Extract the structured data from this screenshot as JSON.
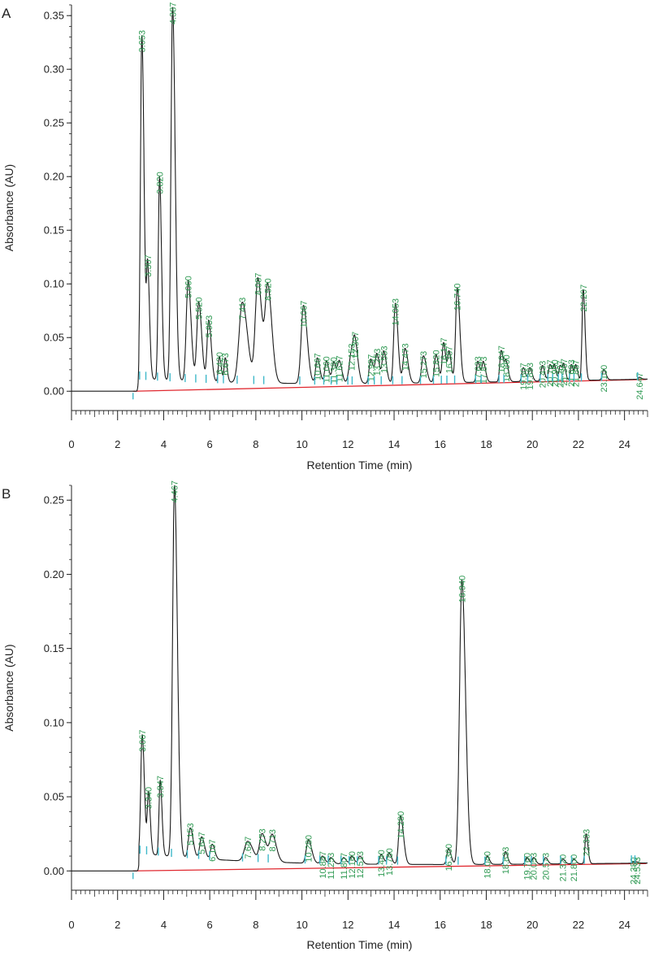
{
  "chart_data": [
    {
      "type": "line",
      "panel": "A",
      "xlabel": "Retention Time (min)",
      "ylabel": "Absorbance (AU)",
      "xlim": [
        0,
        25
      ],
      "ylim": [
        -0.018,
        0.36
      ],
      "xticks": [
        "0",
        "2",
        "4",
        "6",
        "8",
        "10",
        "12",
        "14",
        "16",
        "18",
        "20",
        "22",
        "24"
      ],
      "yticks": [
        "0.00",
        "0.05",
        "0.10",
        "0.15",
        "0.20",
        "0.25",
        "0.30",
        "0.35"
      ],
      "colors": {
        "trace": "#1a1a1a",
        "baseline": "#e0282f",
        "peak_label": "#2f9a53",
        "marker": "#3fb8c9"
      },
      "baseline": {
        "x": [
          2.67,
          24.95
        ],
        "y": [
          0.0,
          0.011
        ]
      },
      "peaks": [
        {
          "label": "3.053",
          "rt": 3.053,
          "height": 0.332,
          "width": 0.06
        },
        {
          "label": "3.307",
          "rt": 3.307,
          "height": 0.113,
          "width": 0.05
        },
        {
          "label": "3.820",
          "rt": 3.82,
          "height": 0.2,
          "width": 0.055
        },
        {
          "label": "4.387",
          "rt": 4.387,
          "height": 0.358,
          "width": 0.07
        },
        {
          "label": "5.060",
          "rt": 5.06,
          "height": 0.103,
          "width": 0.08
        },
        {
          "label": "5.520",
          "rt": 5.52,
          "height": 0.083,
          "width": 0.08
        },
        {
          "label": "5.953",
          "rt": 5.953,
          "height": 0.066,
          "width": 0.07
        },
        {
          "label": "6.420",
          "rt": 6.42,
          "height": 0.032,
          "width": 0.05
        },
        {
          "label": "6.673",
          "rt": 6.673,
          "height": 0.031,
          "width": 0.05
        },
        {
          "label": "7.413",
          "rt": 7.413,
          "height": 0.083,
          "width": 0.14
        },
        {
          "label": "8.087",
          "rt": 8.087,
          "height": 0.105,
          "width": 0.11
        },
        {
          "label": "8.520",
          "rt": 8.52,
          "height": 0.096,
          "width": 0.11
        },
        {
          "label": "10.067",
          "rt": 10.067,
          "height": 0.08,
          "width": 0.1
        },
        {
          "label": "10.667",
          "rt": 10.667,
          "height": 0.031,
          "width": 0.07
        },
        {
          "label": "11.060",
          "rt": 11.06,
          "height": 0.028,
          "width": 0.07
        },
        {
          "label": "11.380",
          "rt": 11.38,
          "height": 0.027,
          "width": 0.07
        },
        {
          "label": "11.627",
          "rt": 11.627,
          "height": 0.027,
          "width": 0.07
        },
        {
          "label": "12.153",
          "rt": 12.153,
          "height": 0.036,
          "width": 0.1
        },
        {
          "label": "12.307",
          "rt": 12.307,
          "height": 0.033,
          "width": 0.08
        },
        {
          "label": "12.987",
          "rt": 12.987,
          "height": 0.03,
          "width": 0.07
        },
        {
          "label": "13.253",
          "rt": 13.253,
          "height": 0.034,
          "width": 0.07
        },
        {
          "label": "13.553",
          "rt": 13.553,
          "height": 0.037,
          "width": 0.07
        },
        {
          "label": "14.053",
          "rt": 14.053,
          "height": 0.082,
          "width": 0.07
        },
        {
          "label": "14.473",
          "rt": 14.473,
          "height": 0.04,
          "width": 0.08
        },
        {
          "label": "15.273",
          "rt": 15.273,
          "height": 0.033,
          "width": 0.08
        },
        {
          "label": "15.820",
          "rt": 15.82,
          "height": 0.034,
          "width": 0.07
        },
        {
          "label": "16.147",
          "rt": 16.147,
          "height": 0.045,
          "width": 0.06
        },
        {
          "label": "16.387",
          "rt": 16.387,
          "height": 0.036,
          "width": 0.06
        },
        {
          "label": "16.740",
          "rt": 16.74,
          "height": 0.096,
          "width": 0.07
        },
        {
          "label": "17.633",
          "rt": 17.633,
          "height": 0.028,
          "width": 0.06
        },
        {
          "label": "17.873",
          "rt": 17.873,
          "height": 0.027,
          "width": 0.06
        },
        {
          "label": "18.647",
          "rt": 18.647,
          "height": 0.038,
          "width": 0.06
        },
        {
          "label": "18.860",
          "rt": 18.86,
          "height": 0.027,
          "width": 0.06
        },
        {
          "label": "19.607",
          "rt": 19.607,
          "height": 0.022,
          "width": 0.06
        },
        {
          "label": "19.893",
          "rt": 19.893,
          "height": 0.022,
          "width": 0.06
        },
        {
          "label": "20.433",
          "rt": 20.433,
          "height": 0.024,
          "width": 0.06
        },
        {
          "label": "20.767",
          "rt": 20.767,
          "height": 0.025,
          "width": 0.06
        },
        {
          "label": "20.960",
          "rt": 20.96,
          "height": 0.023,
          "width": 0.05
        },
        {
          "label": "21.207",
          "rt": 21.207,
          "height": 0.024,
          "width": 0.05
        },
        {
          "label": "21.367",
          "rt": 21.367,
          "height": 0.024,
          "width": 0.05
        },
        {
          "label": "21.693",
          "rt": 21.693,
          "height": 0.025,
          "width": 0.05
        },
        {
          "label": "21.887",
          "rt": 21.887,
          "height": 0.024,
          "width": 0.05
        },
        {
          "label": "22.207",
          "rt": 22.207,
          "height": 0.095,
          "width": 0.05
        },
        {
          "label": "23.100",
          "rt": 23.1,
          "height": 0.02,
          "width": 0.06
        },
        {
          "label": "24.647",
          "rt": 24.647,
          "height": 0.013,
          "width": 0.05
        }
      ]
    },
    {
      "type": "line",
      "panel": "B",
      "xlabel": "Retention Time (min)",
      "ylabel": "Absorbance (AU)",
      "xlim": [
        0,
        25
      ],
      "ylim": [
        -0.013,
        0.26
      ],
      "xticks": [
        "0",
        "2",
        "4",
        "6",
        "8",
        "10",
        "12",
        "14",
        "16",
        "18",
        "20",
        "22",
        "24"
      ],
      "yticks": [
        "0.00",
        "0.05",
        "0.10",
        "0.15",
        "0.20",
        "0.25"
      ],
      "colors": {
        "trace": "#1a1a1a",
        "baseline": "#e0282f",
        "peak_label": "#2f9a53",
        "marker": "#3fb8c9"
      },
      "baseline": {
        "x": [
          2.67,
          24.95
        ],
        "y": [
          0.0,
          0.005
        ]
      },
      "peaks": [
        {
          "label": "3.067",
          "rt": 3.067,
          "height": 0.092,
          "width": 0.06
        },
        {
          "label": "3.340",
          "rt": 3.34,
          "height": 0.052,
          "width": 0.05
        },
        {
          "label": "3.847",
          "rt": 3.847,
          "height": 0.061,
          "width": 0.05
        },
        {
          "label": "4.467",
          "rt": 4.467,
          "height": 0.26,
          "width": 0.08
        },
        {
          "label": "5.153",
          "rt": 5.153,
          "height": 0.029,
          "width": 0.08
        },
        {
          "label": "5.647",
          "rt": 5.647,
          "height": 0.023,
          "width": 0.08
        },
        {
          "label": "6.107",
          "rt": 6.107,
          "height": 0.018,
          "width": 0.07
        },
        {
          "label": "7.647",
          "rt": 7.647,
          "height": 0.02,
          "width": 0.14
        },
        {
          "label": "8.273",
          "rt": 8.273,
          "height": 0.025,
          "width": 0.11
        },
        {
          "label": "8.713",
          "rt": 8.713,
          "height": 0.024,
          "width": 0.11
        },
        {
          "label": "10.280",
          "rt": 10.28,
          "height": 0.021,
          "width": 0.09
        },
        {
          "label": "10.887",
          "rt": 10.887,
          "height": 0.01,
          "width": 0.07
        },
        {
          "label": "11.253",
          "rt": 11.253,
          "height": 0.009,
          "width": 0.07
        },
        {
          "label": "11.807",
          "rt": 11.807,
          "height": 0.009,
          "width": 0.07
        },
        {
          "label": "12.160",
          "rt": 12.16,
          "height": 0.01,
          "width": 0.07
        },
        {
          "label": "12.513",
          "rt": 12.513,
          "height": 0.01,
          "width": 0.07
        },
        {
          "label": "13.440",
          "rt": 13.44,
          "height": 0.011,
          "width": 0.07
        },
        {
          "label": "13.780",
          "rt": 13.78,
          "height": 0.012,
          "width": 0.07
        },
        {
          "label": "14.280",
          "rt": 14.28,
          "height": 0.037,
          "width": 0.08
        },
        {
          "label": "16.360",
          "rt": 16.36,
          "height": 0.015,
          "width": 0.07
        },
        {
          "label": "16.940",
          "rt": 16.94,
          "height": 0.196,
          "width": 0.1
        },
        {
          "label": "18.040",
          "rt": 18.04,
          "height": 0.01,
          "width": 0.06
        },
        {
          "label": "18.833",
          "rt": 18.833,
          "height": 0.013,
          "width": 0.06
        },
        {
          "label": "19.760",
          "rt": 19.76,
          "height": 0.009,
          "width": 0.06
        },
        {
          "label": "20.053",
          "rt": 20.053,
          "height": 0.009,
          "width": 0.06
        },
        {
          "label": "20.573",
          "rt": 20.573,
          "height": 0.009,
          "width": 0.06
        },
        {
          "label": "21.320",
          "rt": 21.32,
          "height": 0.008,
          "width": 0.06
        },
        {
          "label": "21.800",
          "rt": 21.8,
          "height": 0.008,
          "width": 0.06
        },
        {
          "label": "22.333",
          "rt": 22.333,
          "height": 0.025,
          "width": 0.05
        },
        {
          "label": "24.380",
          "rt": 24.38,
          "height": 0.006,
          "width": 0.05
        },
        {
          "label": "24.533",
          "rt": 24.533,
          "height": 0.006,
          "width": 0.05
        }
      ]
    }
  ]
}
